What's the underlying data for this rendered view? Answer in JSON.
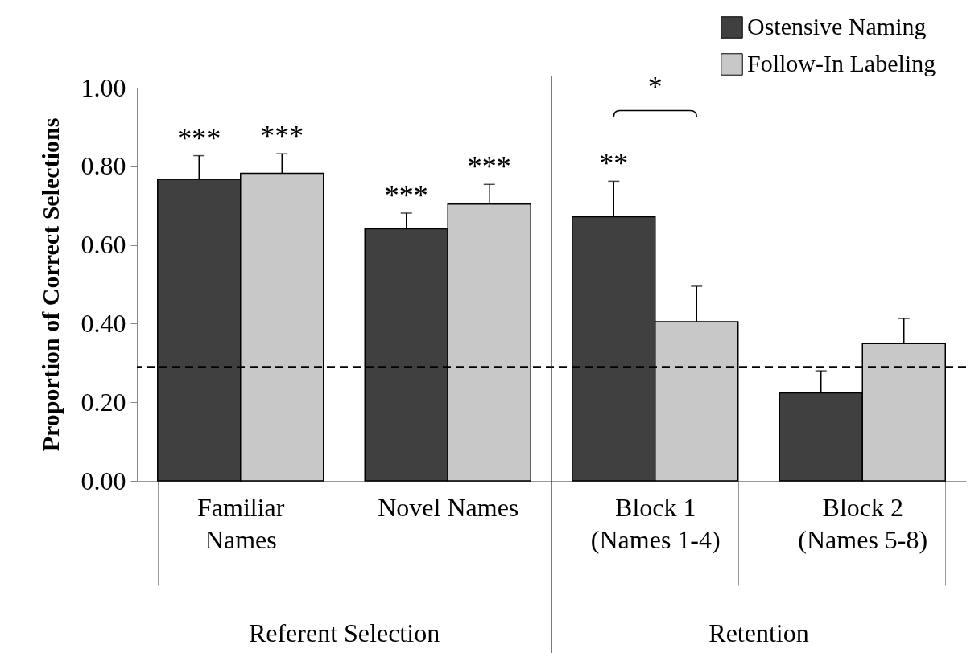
{
  "chart_data": {
    "type": "bar",
    "ylabel": "Proportion of Correct Selections",
    "categories": [
      "Familiar\nNames",
      "Novel Names",
      "Block 1\n(Names 1-4)",
      "Block 2\n(Names 5-8)"
    ],
    "series": [
      {
        "name": "Ostensive Naming",
        "color": "#404040",
        "values": [
          0.767,
          0.641,
          0.672,
          0.224
        ],
        "value_labels": [
          "***",
          "***",
          "**",
          null
        ],
        "errors": [
          0.06,
          0.04,
          0.09,
          0.056
        ]
      },
      {
        "name": "Follow-In Labeling",
        "color": "#c8c8c8",
        "values": [
          0.782,
          0.704,
          0.405,
          0.349
        ],
        "value_labels": [
          "***",
          "***",
          null,
          null
        ],
        "errors": [
          0.05,
          0.05,
          0.09,
          0.064
        ]
      }
    ],
    "ylim": [
      0,
      1
    ],
    "yticks": [
      {
        "value": 0,
        "label": "0.00"
      },
      {
        "value": 0.2,
        "label": "0.20"
      },
      {
        "value": 0.4,
        "label": "0.40"
      },
      {
        "value": 0.6,
        "label": "0.60"
      },
      {
        "value": 0.8,
        "label": "0.80"
      },
      {
        "value": 1,
        "label": "1.00"
      }
    ],
    "ref_lines": [
      {
        "axis": "y",
        "value": 0.29,
        "line_style": "dashed",
        "color": "#000000"
      }
    ],
    "annotations": [
      "*",
      "Referent Selection",
      "Retention"
    ],
    "legend": "top right",
    "grid": false
  }
}
